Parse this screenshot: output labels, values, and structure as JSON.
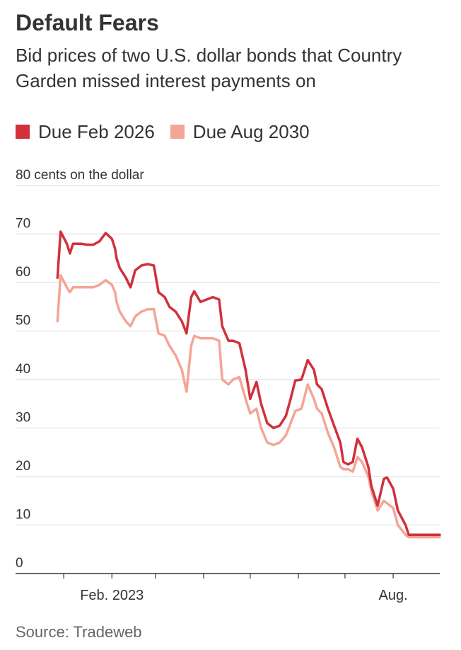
{
  "header": {
    "title": "Default Fears",
    "subtitle": "Bid prices of two U.S. dollar bonds that Country Garden missed interest payments on"
  },
  "legend": [
    {
      "label": "Due Feb 2026",
      "color": "#d0313b"
    },
    {
      "label": "Due Aug 2030",
      "color": "#f4a597"
    }
  ],
  "source": "Source: Tradeweb",
  "chart_data": {
    "type": "line",
    "title": "Default Fears",
    "subtitle": "Bid prices of two U.S. dollar bonds that Country Garden missed interest payments on",
    "unit_label": "80 cents on the dollar",
    "ylim": [
      0,
      80
    ],
    "y_ticks": [
      {
        "value": 80,
        "label": "80 cents on the dollar"
      },
      {
        "value": 70,
        "label": "70"
      },
      {
        "value": 60,
        "label": "60"
      },
      {
        "value": 50,
        "label": "50"
      },
      {
        "value": 40,
        "label": "40"
      },
      {
        "value": 30,
        "label": "30"
      },
      {
        "value": 20,
        "label": "20"
      },
      {
        "value": 10,
        "label": "10"
      },
      {
        "value": 0,
        "label": "0"
      }
    ],
    "xlim": [
      "2022-12-01",
      "2023-08-31"
    ],
    "x_ticks": [
      {
        "date": "2023-01-01",
        "label": ""
      },
      {
        "date": "2023-02-01",
        "label": "Feb. 2023"
      },
      {
        "date": "2023-03-01",
        "label": ""
      },
      {
        "date": "2023-04-01",
        "label": ""
      },
      {
        "date": "2023-05-01",
        "label": ""
      },
      {
        "date": "2023-06-01",
        "label": ""
      },
      {
        "date": "2023-07-01",
        "label": ""
      },
      {
        "date": "2023-08-01",
        "label": "Aug."
      }
    ],
    "grid": true,
    "legend_position": "top",
    "series": [
      {
        "name": "Due Feb 2026",
        "color": "#d0313b",
        "x": [
          "2022-12-28",
          "2022-12-30",
          "2023-01-03",
          "2023-01-05",
          "2023-01-07",
          "2023-01-09",
          "2023-01-12",
          "2023-01-16",
          "2023-01-20",
          "2023-01-24",
          "2023-01-28",
          "2023-02-01",
          "2023-02-03",
          "2023-02-04",
          "2023-02-06",
          "2023-02-08",
          "2023-02-10",
          "2023-02-13",
          "2023-02-16",
          "2023-02-20",
          "2023-02-24",
          "2023-02-28",
          "2023-03-03",
          "2023-03-07",
          "2023-03-10",
          "2023-03-14",
          "2023-03-18",
          "2023-03-21",
          "2023-03-24",
          "2023-03-26",
          "2023-03-30",
          "2023-04-03",
          "2023-04-07",
          "2023-04-11",
          "2023-04-13",
          "2023-04-17",
          "2023-04-20",
          "2023-04-24",
          "2023-04-28",
          "2023-05-01",
          "2023-05-05",
          "2023-05-08",
          "2023-05-12",
          "2023-05-16",
          "2023-05-20",
          "2023-05-24",
          "2023-05-27",
          "2023-05-30",
          "2023-06-03",
          "2023-06-07",
          "2023-06-11",
          "2023-06-13",
          "2023-06-16",
          "2023-06-20",
          "2023-06-24",
          "2023-06-28",
          "2023-06-30",
          "2023-07-03",
          "2023-07-06",
          "2023-07-09",
          "2023-07-12",
          "2023-07-16",
          "2023-07-18",
          "2023-07-22",
          "2023-07-26",
          "2023-07-28",
          "2023-08-01",
          "2023-08-04",
          "2023-08-09",
          "2023-08-11",
          "2023-08-15",
          "2023-08-18",
          "2023-08-21",
          "2023-08-26",
          "2023-08-30",
          "2023-08-31"
        ],
        "values": [
          61,
          70.5,
          68,
          66,
          68,
          68,
          68,
          67.8,
          67.8,
          68.5,
          70.2,
          69,
          67,
          65,
          63,
          62,
          61,
          59,
          62.5,
          63.5,
          63.8,
          63.5,
          58,
          57,
          55,
          54,
          52,
          49.5,
          57,
          58.2,
          56,
          56.5,
          57,
          56.5,
          51,
          48,
          48,
          47.5,
          42,
          36,
          39.5,
          35,
          31,
          30,
          30.5,
          32.5,
          36,
          39.8,
          40,
          44,
          42,
          39,
          38,
          34,
          30.5,
          27,
          23,
          22.5,
          23,
          27.8,
          26,
          22,
          18,
          14,
          19.5,
          19.8,
          17.5,
          13,
          10,
          8,
          8,
          8,
          8,
          8,
          8,
          8
        ]
      },
      {
        "name": "Due Aug 2030",
        "color": "#f4a597",
        "x": [
          "2022-12-28",
          "2022-12-30",
          "2023-01-03",
          "2023-01-05",
          "2023-01-07",
          "2023-01-09",
          "2023-01-12",
          "2023-01-16",
          "2023-01-20",
          "2023-01-24",
          "2023-01-28",
          "2023-02-01",
          "2023-02-03",
          "2023-02-04",
          "2023-02-06",
          "2023-02-08",
          "2023-02-10",
          "2023-02-13",
          "2023-02-16",
          "2023-02-20",
          "2023-02-24",
          "2023-02-28",
          "2023-03-03",
          "2023-03-07",
          "2023-03-10",
          "2023-03-14",
          "2023-03-18",
          "2023-03-21",
          "2023-03-24",
          "2023-03-26",
          "2023-03-30",
          "2023-04-03",
          "2023-04-07",
          "2023-04-11",
          "2023-04-13",
          "2023-04-17",
          "2023-04-20",
          "2023-04-24",
          "2023-04-28",
          "2023-05-01",
          "2023-05-05",
          "2023-05-08",
          "2023-05-12",
          "2023-05-16",
          "2023-05-20",
          "2023-05-24",
          "2023-05-27",
          "2023-05-30",
          "2023-06-03",
          "2023-06-07",
          "2023-06-11",
          "2023-06-13",
          "2023-06-16",
          "2023-06-20",
          "2023-06-24",
          "2023-06-28",
          "2023-06-30",
          "2023-07-03",
          "2023-07-06",
          "2023-07-09",
          "2023-07-12",
          "2023-07-16",
          "2023-07-18",
          "2023-07-22",
          "2023-07-26",
          "2023-07-28",
          "2023-08-01",
          "2023-08-04",
          "2023-08-09",
          "2023-08-11",
          "2023-08-15",
          "2023-08-18",
          "2023-08-21",
          "2023-08-26",
          "2023-08-30",
          "2023-08-31"
        ],
        "values": [
          52,
          61.5,
          59,
          58,
          59,
          59,
          59,
          59,
          59,
          59.5,
          60.5,
          59.5,
          58,
          56,
          54,
          53,
          52,
          51,
          53,
          54,
          54.5,
          54.5,
          49.5,
          49,
          47,
          45,
          42,
          37.5,
          47,
          49,
          48.5,
          48.5,
          48.5,
          48,
          40,
          39,
          40,
          40.5,
          36,
          33,
          34,
          30,
          27,
          26.5,
          27,
          28.5,
          31,
          33.5,
          34,
          39,
          36,
          34,
          33,
          29,
          26,
          22,
          21.5,
          21.5,
          21,
          24,
          23,
          20,
          17,
          13,
          15,
          14.5,
          13.5,
          10,
          8,
          7.5,
          7.5,
          7.5,
          7.5,
          7.5,
          7.5,
          7.5
        ]
      }
    ]
  }
}
